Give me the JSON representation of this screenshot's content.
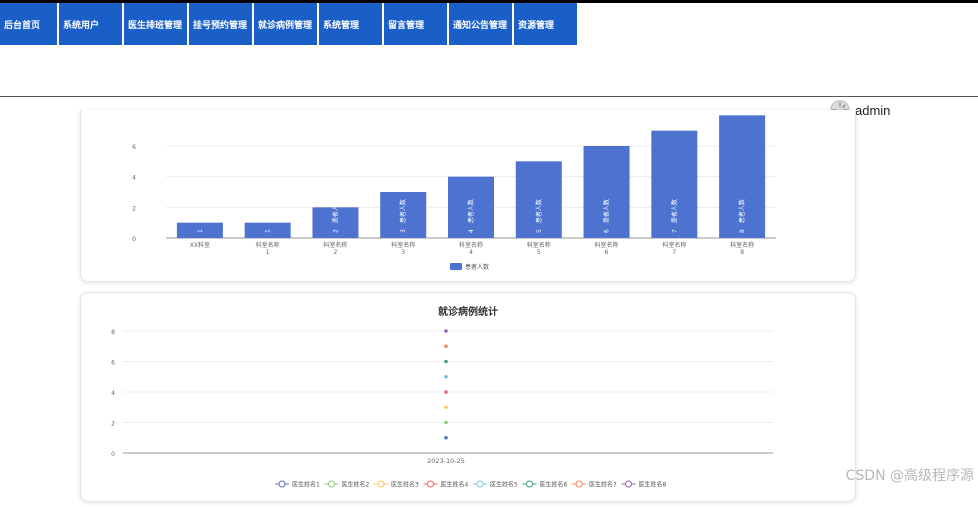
{
  "nav": {
    "items": [
      {
        "label": "后台首页",
        "width": 57
      },
      {
        "label": "系统用户",
        "width": 63
      },
      {
        "label": "医生排班管理",
        "width": 63
      },
      {
        "label": "挂号预约管理",
        "width": 63
      },
      {
        "label": "就诊病例管理",
        "width": 63
      },
      {
        "label": "系统管理",
        "width": 63
      },
      {
        "label": "留言管理",
        "width": 63
      },
      {
        "label": "通知公告管理",
        "width": 63
      },
      {
        "label": "资源管理",
        "width": 63
      }
    ]
  },
  "user": {
    "name": "admin"
  },
  "watermark": "CSDN @高级程序源",
  "colors": {
    "nav": "#1a5fc8",
    "bar": "#4d72cf"
  },
  "chart_data": [
    {
      "type": "bar",
      "title": "",
      "categories": [
        "XX科室",
        "科室名称\n1",
        "科室名称\n2",
        "科室名称\n3",
        "科室名称\n4",
        "科室名称\n5",
        "科室名称\n6",
        "科室名称\n7",
        "科室名称\n8"
      ],
      "series": [
        {
          "name": "患者人数",
          "values": [
            1,
            1,
            2,
            3,
            4,
            5,
            6,
            7,
            8
          ]
        }
      ],
      "yticks": [
        0,
        2,
        4,
        6
      ],
      "ylim": [
        0,
        8
      ],
      "legend": "bottom",
      "grid": true
    },
    {
      "type": "scatter",
      "title": "就诊病例统计",
      "categories": [
        "2023-10-25"
      ],
      "series": [
        {
          "name": "医生姓名1",
          "values": [
            1
          ],
          "color": "#5470c6"
        },
        {
          "name": "医生姓名2",
          "values": [
            2
          ],
          "color": "#91cc75"
        },
        {
          "name": "医生姓名3",
          "values": [
            3
          ],
          "color": "#fac858"
        },
        {
          "name": "医生姓名4",
          "values": [
            4
          ],
          "color": "#ee6666"
        },
        {
          "name": "医生姓名5",
          "values": [
            5
          ],
          "color": "#73c0de"
        },
        {
          "name": "医生姓名6",
          "values": [
            6
          ],
          "color": "#3ba272"
        },
        {
          "name": "医生姓名7",
          "values": [
            7
          ],
          "color": "#fc8452"
        },
        {
          "name": "医生姓名8",
          "values": [
            8
          ],
          "color": "#9a60b4"
        }
      ],
      "yticks": [
        0,
        2,
        4,
        6,
        8
      ],
      "ylim": [
        0,
        8
      ],
      "legend": "bottom",
      "grid": true
    }
  ]
}
